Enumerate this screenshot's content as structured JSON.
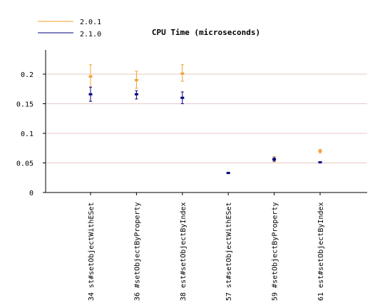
{
  "chart_data": {
    "type": "scatter",
    "title": "CPU Time (microseconds)",
    "xlabel": "",
    "ylabel": "",
    "ylim": [
      0,
      0.2
    ],
    "yticks": [
      "0",
      "0.05",
      "0.1",
      "0.15",
      "0.2"
    ],
    "ytick_values": [
      0,
      0.05,
      0.1,
      0.15,
      0.2
    ],
    "grid": true,
    "legend_position": "top-left",
    "categories": [
      "34 st#setObjectWithESet",
      "36 #setObjectByProperty",
      "38 est#setObjectByIndex",
      "57 st#setObjectWithESet",
      "59 #setObjectByProperty",
      "61 est#setObjectByIndex"
    ],
    "series": [
      {
        "name": "2.0.1",
        "color": "#f0a030",
        "values": [
          0.196,
          0.19,
          0.201,
          null,
          0.056,
          0.07
        ],
        "err_low": [
          0.178,
          0.176,
          0.188,
          null,
          0.052,
          0.067
        ],
        "err_high": [
          0.216,
          0.205,
          0.216,
          null,
          0.061,
          0.073
        ]
      },
      {
        "name": "2.1.0",
        "color": "#000080",
        "values": [
          0.166,
          0.166,
          0.16,
          0.033,
          0.056,
          0.051
        ],
        "err_low": [
          0.154,
          0.158,
          0.15,
          0.032,
          0.053,
          0.05
        ],
        "err_high": [
          0.178,
          0.172,
          0.17,
          0.034,
          0.059,
          0.052
        ]
      }
    ]
  }
}
